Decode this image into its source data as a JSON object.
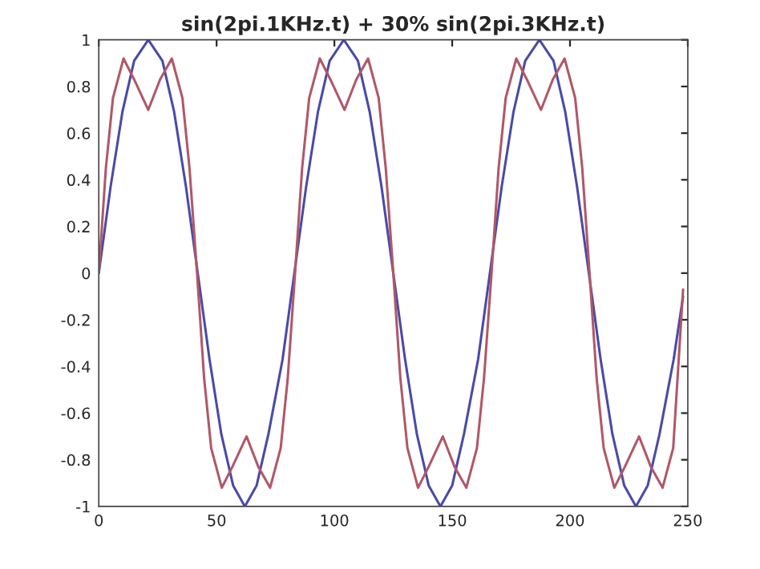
{
  "chart_data": {
    "type": "line",
    "title": "sin(2pi.1KHz.t) + 30% sin(2pi.3KHz.t)",
    "xlim": [
      0,
      250
    ],
    "ylim": [
      -1,
      1
    ],
    "xticks": [
      0,
      50,
      100,
      150,
      200,
      250
    ],
    "yticks": [
      -1,
      -0.8,
      -0.6,
      -0.4,
      -0.2,
      0,
      0.2,
      0.4,
      0.6,
      0.8,
      1
    ],
    "grid": false,
    "marker": "none",
    "line_style": "solid",
    "series": [
      {
        "color": "#4a4aa8",
        "x": [
          0,
          5,
          10,
          15,
          21,
          27,
          32,
          37,
          42,
          47,
          52,
          57,
          62,
          67,
          72,
          78,
          83,
          88,
          93,
          98,
          104,
          110,
          115,
          120,
          125,
          130,
          135,
          140,
          145,
          150,
          155,
          161,
          166,
          171,
          176,
          181,
          187,
          193,
          198,
          203,
          208,
          213,
          218,
          223,
          228,
          233,
          238,
          244,
          248
        ],
        "values": [
          0,
          0.37,
          0.69,
          0.91,
          1,
          0.91,
          0.69,
          0.37,
          0,
          -0.37,
          -0.69,
          -0.91,
          -1,
          -0.91,
          -0.69,
          -0.37,
          0,
          0.37,
          0.69,
          0.91,
          1,
          0.91,
          0.69,
          0.37,
          0,
          -0.37,
          -0.69,
          -0.91,
          -1,
          -0.91,
          -0.69,
          -0.37,
          0,
          0.37,
          0.69,
          0.91,
          1,
          0.91,
          0.69,
          0.37,
          0,
          -0.37,
          -0.69,
          -0.91,
          -1,
          -0.91,
          -0.69,
          -0.37,
          -0.1
        ]
      },
      {
        "color": "#b05868",
        "x": [
          0,
          3,
          6,
          10.5,
          15,
          21,
          26,
          31,
          35.5,
          38.5,
          41.7,
          44.7,
          47.7,
          52.2,
          56.7,
          62.7,
          67.7,
          72.7,
          77.2,
          80.2,
          83.3,
          86.3,
          89.3,
          93.8,
          98.3,
          104.3,
          109.3,
          114.3,
          118.8,
          121.8,
          125,
          128,
          131,
          135.5,
          140,
          146,
          151,
          156,
          160.5,
          163.5,
          166.7,
          169.7,
          172.7,
          177.2,
          181.7,
          187.7,
          192.7,
          197.7,
          202.2,
          205.2,
          208.3,
          211.3,
          214.3,
          218.8,
          223.3,
          229.3,
          234.3,
          239.3,
          243.8,
          248
        ],
        "values": [
          0,
          0.45,
          0.75,
          0.92,
          0.83,
          0.7,
          0.83,
          0.92,
          0.75,
          0.45,
          0,
          -0.45,
          -0.75,
          -0.92,
          -0.83,
          -0.7,
          -0.83,
          -0.92,
          -0.75,
          -0.45,
          0,
          0.45,
          0.75,
          0.92,
          0.83,
          0.7,
          0.83,
          0.92,
          0.75,
          0.45,
          0,
          -0.45,
          -0.75,
          -0.92,
          -0.83,
          -0.7,
          -0.83,
          -0.92,
          -0.75,
          -0.45,
          0,
          0.45,
          0.75,
          0.92,
          0.83,
          0.7,
          0.83,
          0.92,
          0.75,
          0.45,
          0,
          -0.45,
          -0.75,
          -0.92,
          -0.83,
          -0.7,
          -0.83,
          -0.92,
          -0.75,
          -0.07
        ]
      }
    ]
  }
}
